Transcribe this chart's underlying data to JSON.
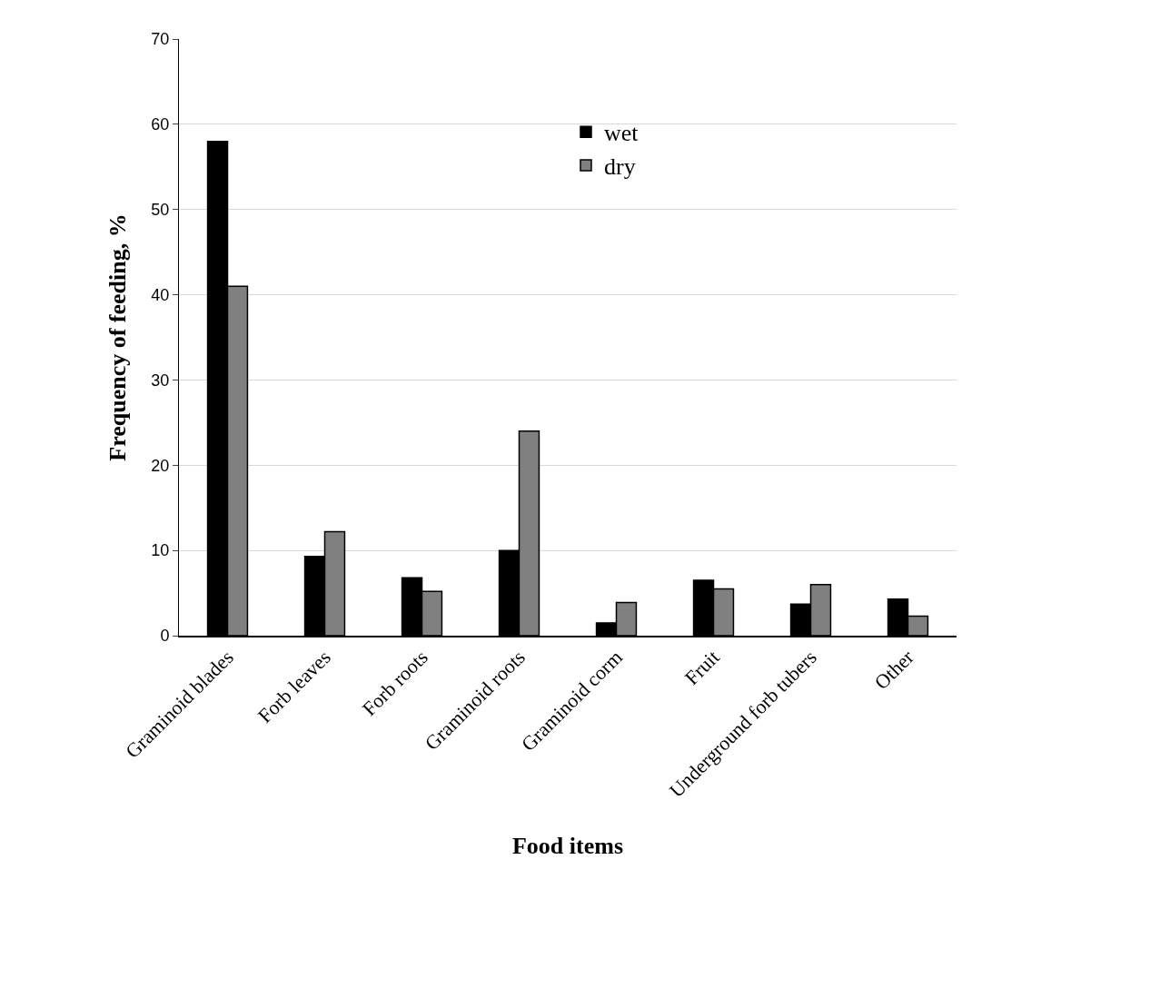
{
  "chart_data": {
    "type": "bar",
    "xlabel": "Food items",
    "ylabel": "Frequency of feeding, %",
    "categories": [
      "Graminoid blades",
      "Forb leaves",
      "Forb roots",
      "Graminoid roots",
      "Graminoid corm",
      "Fruit",
      "Underground forb tubers",
      "Other"
    ],
    "series": [
      {
        "name": "wet",
        "color": "#000000",
        "values": [
          58,
          9.3,
          6.8,
          10,
          1.5,
          6.5,
          3.7,
          4.3
        ]
      },
      {
        "name": "dry",
        "color": "#808080",
        "values": [
          41,
          12.2,
          5.2,
          24,
          3.9,
          5.5,
          6.0,
          2.3
        ]
      }
    ],
    "ylim": [
      0,
      70
    ],
    "yticks": [
      0,
      10,
      20,
      30,
      40,
      50,
      60,
      70
    ],
    "grid": "y",
    "legend": "top"
  }
}
